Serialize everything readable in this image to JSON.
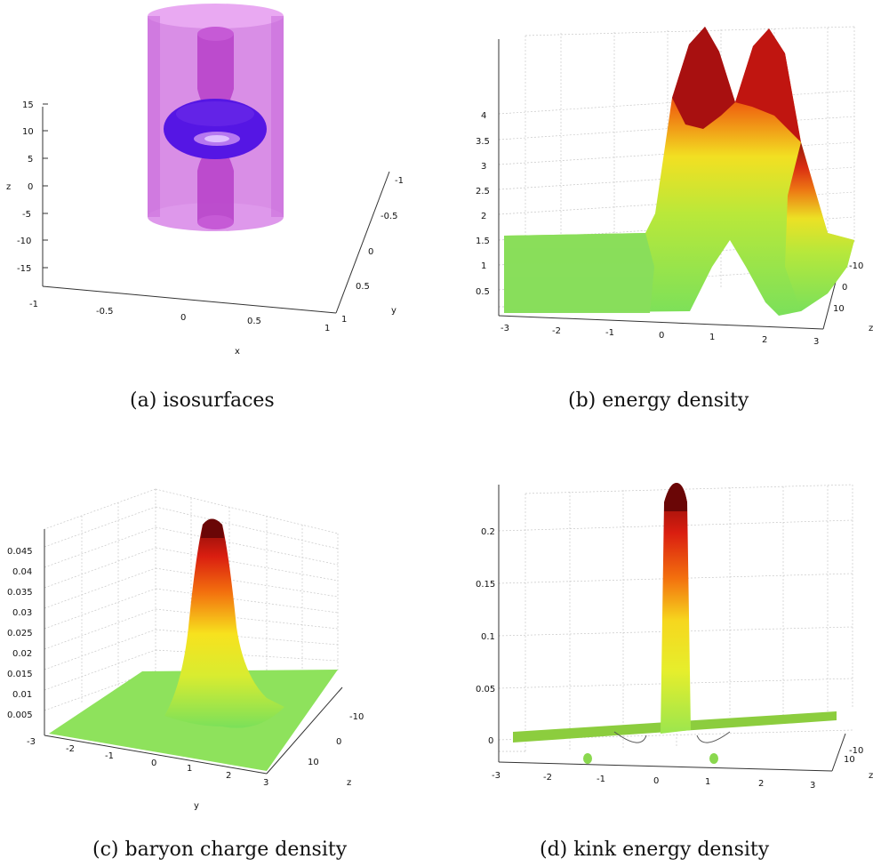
{
  "panels": [
    {
      "id": "a",
      "caption": "(a) isosurfaces",
      "chart_data": {
        "type": "isosurface",
        "xlabel": "x",
        "ylabel": "y",
        "zlabel": "z",
        "x_ticks": [
          "-1",
          "-0.5",
          "0",
          "0.5",
          "1"
        ],
        "y_ticks": [
          "-1",
          "-0.5",
          "0",
          "0.5",
          "1"
        ],
        "z_ticks": [
          "15",
          "10",
          "5",
          "0",
          "-5",
          "-10",
          "-15"
        ],
        "colors": {
          "cylinder": "#d070e0",
          "torus": "#5010e0"
        }
      }
    },
    {
      "id": "b",
      "caption": "(b) energy density",
      "chart_data": {
        "type": "surface",
        "xlabel": "",
        "ylabel": "z",
        "x_ticks": [
          "-3",
          "-2",
          "-1",
          "0",
          "1",
          "2",
          "3"
        ],
        "y_ticks": [
          "-10",
          "0",
          "10"
        ],
        "z_ticks": [
          "0.5",
          "1",
          "1.5",
          "2",
          "2.5",
          "3",
          "3.5",
          "4"
        ],
        "profile": {
          "baseline": 1.5,
          "peaks": [
            4.4,
            4.4
          ],
          "peak_x": [
            -0.5,
            0.5
          ],
          "center": 3.6
        }
      }
    },
    {
      "id": "c",
      "caption": "(c) baryon charge density",
      "chart_data": {
        "type": "surface",
        "xlabel": "y",
        "ylabel": "z",
        "x_ticks": [
          "-3",
          "-2",
          "-1",
          "0",
          "1",
          "2",
          "3"
        ],
        "y_ticks": [
          "-10",
          "0",
          "10"
        ],
        "z_ticks": [
          "0.045",
          "0.04",
          "0.035",
          "0.03",
          "0.025",
          "0.02",
          "0.015",
          "0.01",
          "0.005"
        ],
        "profile": {
          "peak": 0.049,
          "peak_x": 0
        }
      }
    },
    {
      "id": "d",
      "caption": "(d) kink energy density",
      "chart_data": {
        "type": "surface",
        "xlabel": "",
        "ylabel": "z",
        "x_ticks": [
          "-3",
          "-2",
          "-1",
          "0",
          "1",
          "2",
          "3"
        ],
        "y_ticks": [
          "-10",
          "10"
        ],
        "z_ticks": [
          "0.2",
          "0.15",
          "0.1",
          "0.05",
          "0"
        ],
        "profile": {
          "peak": 0.24,
          "peak_x": 0,
          "dip": -0.02,
          "dip_x": [
            -0.6,
            0.6
          ]
        }
      }
    }
  ]
}
